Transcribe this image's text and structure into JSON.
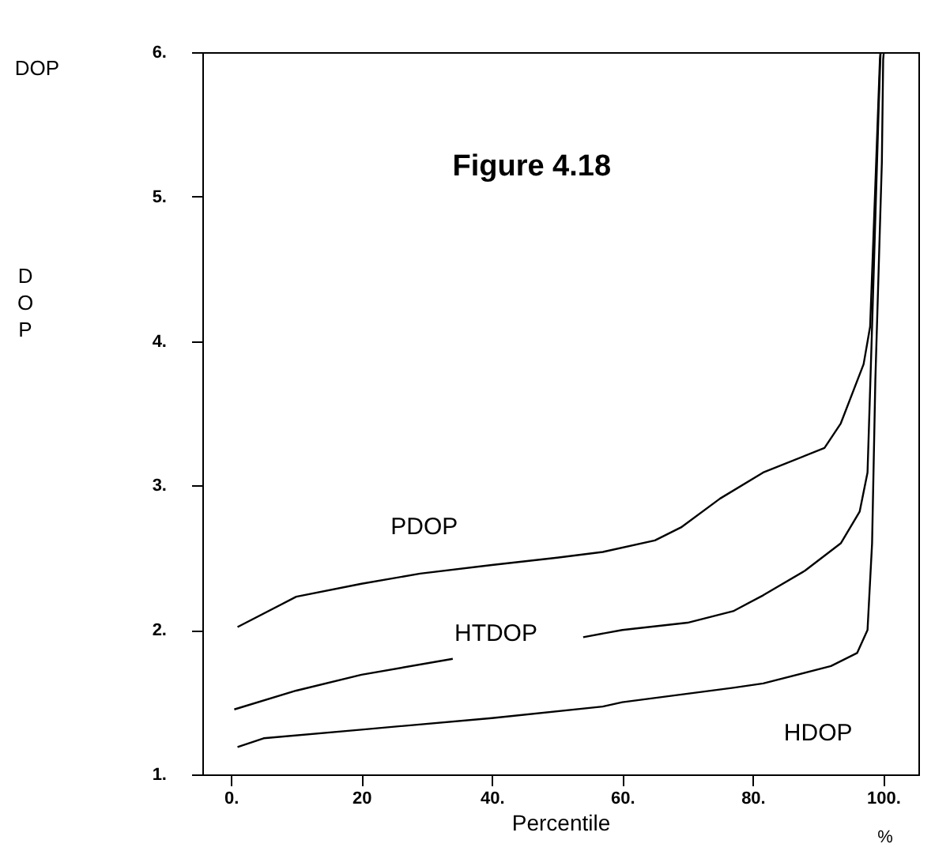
{
  "chart_data": {
    "type": "line",
    "title": "Figure 4.18",
    "xlabel": "Percentile",
    "ylabel": "DOP",
    "annotations": [
      "DOP",
      "%"
    ],
    "xlim": [
      -4.4,
      105.4
    ],
    "ylim": [
      1,
      6
    ],
    "xticks": [
      {
        "value": 0,
        "label": "0."
      },
      {
        "value": 20,
        "label": "20"
      },
      {
        "value": 40,
        "label": "40."
      },
      {
        "value": 60,
        "label": "60."
      },
      {
        "value": 80,
        "label": "80."
      },
      {
        "value": 100,
        "label": "100."
      }
    ],
    "yticks": [
      {
        "value": 1,
        "label": "1."
      },
      {
        "value": 2,
        "label": "2."
      },
      {
        "value": 3,
        "label": "3."
      },
      {
        "value": 4,
        "label": "4."
      },
      {
        "value": 5,
        "label": "5."
      },
      {
        "value": 6,
        "label": "6."
      }
    ],
    "grid": false,
    "marker": "none",
    "line_style": "solid",
    "series": [
      {
        "name": "PDOP",
        "color": "#000000",
        "x": [
          1,
          10,
          20,
          29,
          40,
          50,
          57,
          65,
          69,
          75,
          81.6,
          91,
          93.5,
          97,
          98,
          98.8,
          99.5,
          99.6
        ],
        "values": [
          2.02,
          2.23,
          2.32,
          2.39,
          2.45,
          2.5,
          2.54,
          2.62,
          2.71,
          2.91,
          3.09,
          3.26,
          3.43,
          3.84,
          4.1,
          5.08,
          5.95,
          6
        ]
      },
      {
        "name": "HTDOP",
        "color": "#000000",
        "x": [
          0.5,
          10,
          20,
          34,
          44,
          54,
          60,
          70,
          77,
          81.6,
          88,
          93.5,
          96.4,
          97.6,
          98.3,
          99.3,
          99.6
        ],
        "values": [
          1.45,
          1.58,
          1.69,
          1.8,
          null,
          1.95,
          2.0,
          2.05,
          2.13,
          2.24,
          2.41,
          2.6,
          2.82,
          3.09,
          4.1,
          5.6,
          6
        ]
      },
      {
        "name": "HDOP",
        "color": "#000000",
        "x": [
          1,
          5,
          20,
          40,
          57,
          60,
          77,
          81.6,
          92,
          96,
          97.6,
          98.3,
          98.8,
          99.8,
          100,
          100.1
        ],
        "values": [
          1.19,
          1.25,
          1.31,
          1.39,
          1.47,
          1.5,
          1.6,
          1.63,
          1.75,
          1.84,
          2.0,
          2.6,
          3.73,
          5.24,
          5.95,
          6
        ]
      }
    ]
  }
}
